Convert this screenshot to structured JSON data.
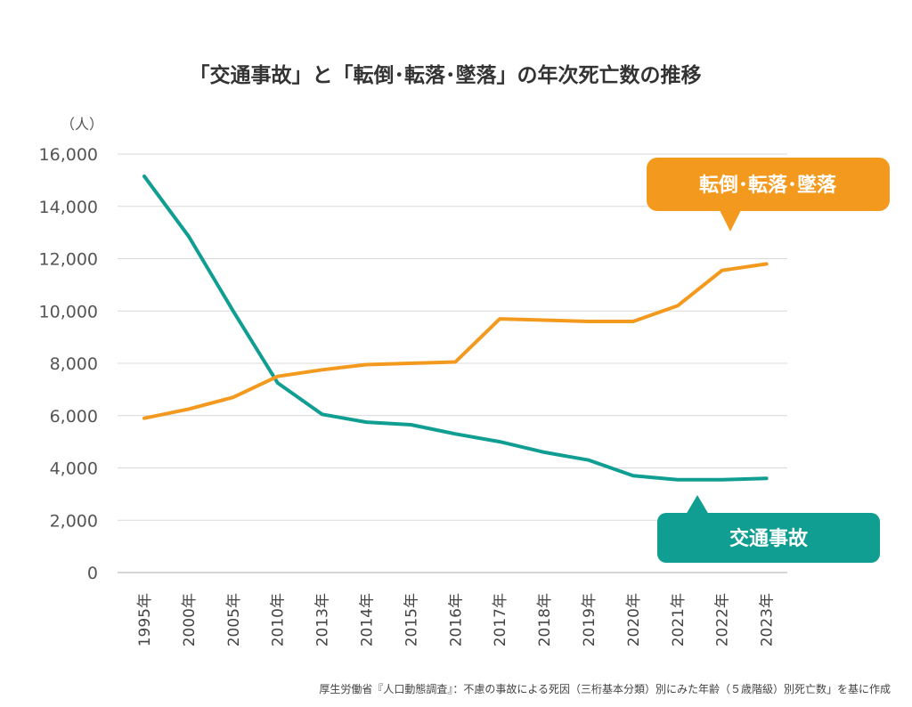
{
  "chart_data": {
    "type": "line",
    "title": "「交通事故」と「転倒･転落･墜落」の年次死亡数の推移",
    "ylabel": "（人）",
    "xlabel": "",
    "ylim": [
      0,
      16000
    ],
    "yticks": [
      "0",
      "2,000",
      "4,000",
      "6,000",
      "8,000",
      "10,000",
      "12,000",
      "14,000",
      "16,000"
    ],
    "grid": true,
    "categories": [
      "1995年",
      "2000年",
      "2005年",
      "2010年",
      "2013年",
      "2014年",
      "2015年",
      "2016年",
      "2017年",
      "2018年",
      "2019年",
      "2020年",
      "2021年",
      "2022年",
      "2023年"
    ],
    "series": [
      {
        "name": "交通事故",
        "color": "#119e92",
        "values": [
          15150,
          12850,
          10000,
          7250,
          6050,
          5750,
          5650,
          5300,
          5000,
          4600,
          4300,
          3700,
          3550,
          3550,
          3600
        ]
      },
      {
        "name": "転倒･転落･墜落",
        "color": "#f39a1e",
        "values": [
          5900,
          6250,
          6700,
          7500,
          7750,
          7950,
          8000,
          8050,
          9700,
          9650,
          9600,
          9600,
          10200,
          11550,
          11800
        ]
      }
    ],
    "source": "厚生労働省『人口動態調査』：不慮の事故による死因（三桁基本分類）別にみた年齢（５歳階級）別死亡数」を基に作成"
  }
}
